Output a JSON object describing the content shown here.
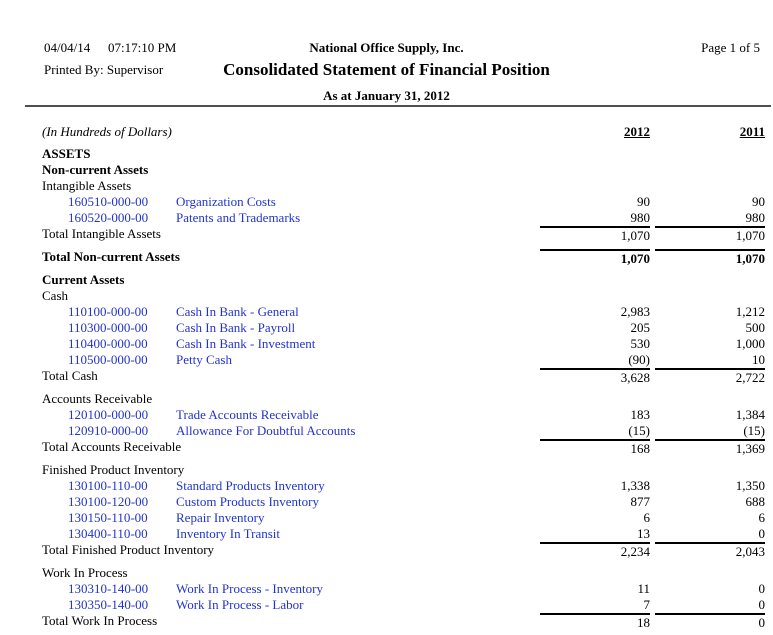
{
  "header": {
    "date": "04/04/14",
    "time": "07:17:10 PM",
    "company": "National Office Supply, Inc.",
    "page_label": "Page 1 of 5",
    "printed_by": "Printed By: Supervisor",
    "title": "Consolidated Statement of Financial Position",
    "subtitle": "As at January 31, 2012"
  },
  "table": {
    "units_label": "(In Hundreds of Dollars)",
    "col_2012": "2012",
    "col_2011": "2011",
    "rows": [
      {
        "type": "colheader"
      },
      {
        "type": "spacer",
        "h": 6
      },
      {
        "type": "caption",
        "label": "ASSETS",
        "bold": true
      },
      {
        "type": "caption",
        "label": "Non-current Assets",
        "bold": true
      },
      {
        "type": "caption",
        "label": "Intangible Assets",
        "bold": false
      },
      {
        "type": "account",
        "acct": "160510-000-00",
        "desc": "Organization Costs",
        "v2012": "90",
        "v2011": "90"
      },
      {
        "type": "account",
        "acct": "160520-000-00",
        "desc": "Patents and Trademarks",
        "v2012": "980",
        "v2011": "980"
      },
      {
        "type": "total",
        "label": "Total Intangible Assets",
        "v2012": "1,070",
        "v2011": "1,070",
        "bold": false
      },
      {
        "type": "spacer",
        "h": 5
      },
      {
        "type": "total",
        "label": "Total Non-current Assets",
        "v2012": "1,070",
        "v2011": "1,070",
        "bold": true
      },
      {
        "type": "spacer",
        "h": 5
      },
      {
        "type": "caption",
        "label": "Current Assets",
        "bold": true
      },
      {
        "type": "caption",
        "label": "Cash",
        "bold": false
      },
      {
        "type": "account",
        "acct": "110100-000-00",
        "desc": "Cash In Bank - General",
        "v2012": "2,983",
        "v2011": "1,212"
      },
      {
        "type": "account",
        "acct": "110300-000-00",
        "desc": "Cash In Bank - Payroll",
        "v2012": "205",
        "v2011": "500"
      },
      {
        "type": "account",
        "acct": "110400-000-00",
        "desc": "Cash In Bank - Investment",
        "v2012": "530",
        "v2011": "1,000"
      },
      {
        "type": "account",
        "acct": "110500-000-00",
        "desc": "Petty Cash",
        "v2012": "(90)",
        "v2011": "10"
      },
      {
        "type": "total",
        "label": "Total Cash",
        "v2012": "3,628",
        "v2011": "2,722",
        "bold": false
      },
      {
        "type": "spacer",
        "h": 5
      },
      {
        "type": "caption",
        "label": "Accounts Receivable",
        "bold": false
      },
      {
        "type": "account",
        "acct": "120100-000-00",
        "desc": "Trade Accounts Receivable",
        "v2012": "183",
        "v2011": "1,384"
      },
      {
        "type": "account",
        "acct": "120910-000-00",
        "desc": "Allowance For Doubtful Accounts",
        "v2012": "(15)",
        "v2011": "(15)"
      },
      {
        "type": "total",
        "label": "Total Accounts Receivable",
        "v2012": "168",
        "v2011": "1,369",
        "bold": false
      },
      {
        "type": "spacer",
        "h": 5
      },
      {
        "type": "caption",
        "label": "Finished Product Inventory",
        "bold": false
      },
      {
        "type": "account",
        "acct": "130100-110-00",
        "desc": "Standard Products Inventory",
        "v2012": "1,338",
        "v2011": "1,350"
      },
      {
        "type": "account",
        "acct": "130100-120-00",
        "desc": "Custom Products Inventory",
        "v2012": "877",
        "v2011": "688"
      },
      {
        "type": "account",
        "acct": "130150-110-00",
        "desc": "Repair Inventory",
        "v2012": "6",
        "v2011": "6"
      },
      {
        "type": "account",
        "acct": "130400-110-00",
        "desc": "Inventory In Transit",
        "v2012": "13",
        "v2011": "0"
      },
      {
        "type": "total",
        "label": "Total Finished Product Inventory",
        "v2012": "2,234",
        "v2011": "2,043",
        "bold": false
      },
      {
        "type": "spacer",
        "h": 5
      },
      {
        "type": "caption",
        "label": "Work In Process",
        "bold": false
      },
      {
        "type": "account",
        "acct": "130310-140-00",
        "desc": "Work In Process - Inventory",
        "v2012": "11",
        "v2011": "0"
      },
      {
        "type": "account",
        "acct": "130350-140-00",
        "desc": "Work In Process - Labor",
        "v2012": "7",
        "v2011": "0"
      },
      {
        "type": "total",
        "label": "Total Work In Process",
        "v2012": "18",
        "v2011": "0",
        "bold": false
      }
    ]
  },
  "colors": {
    "link_blue": "#2233cc",
    "total_rule": "#000000",
    "header_rule": "#4f4f4f"
  }
}
